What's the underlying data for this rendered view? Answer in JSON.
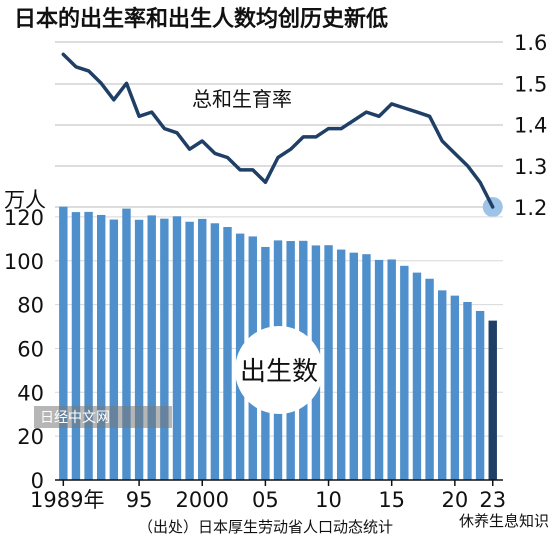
{
  "title": "日本的出生率和出生人数均创历史新低",
  "source": "（出处）日本厚生劳动省人口动态统计",
  "watermarks": {
    "left": "日经中文网",
    "right": "休养生息知识"
  },
  "colors": {
    "bar": "#4f8fcb",
    "bar_last": "#1f3f66",
    "line": "#1f3f66",
    "dot": "#9dc3e8"
  },
  "chart_data": [
    {
      "type": "line",
      "label": "总和生育率",
      "x": [
        1989,
        1990,
        1991,
        1992,
        1993,
        1994,
        1995,
        1996,
        1997,
        1998,
        1999,
        2000,
        2001,
        2002,
        2003,
        2004,
        2005,
        2006,
        2007,
        2008,
        2009,
        2010,
        2011,
        2012,
        2013,
        2014,
        2015,
        2016,
        2017,
        2018,
        2019,
        2020,
        2021,
        2022,
        2023
      ],
      "values": [
        1.57,
        1.54,
        1.53,
        1.5,
        1.46,
        1.5,
        1.42,
        1.43,
        1.39,
        1.38,
        1.34,
        1.36,
        1.33,
        1.32,
        1.29,
        1.29,
        1.26,
        1.32,
        1.34,
        1.37,
        1.37,
        1.39,
        1.39,
        1.41,
        1.43,
        1.42,
        1.45,
        1.44,
        1.43,
        1.42,
        1.36,
        1.33,
        1.3,
        1.26,
        1.2
      ],
      "ylim": [
        1.2,
        1.6
      ],
      "yticks": [
        "1.6",
        "1.5",
        "1.4",
        "1.3",
        "1.2"
      ],
      "yaxis_position": "right",
      "highlight_last": true
    },
    {
      "type": "bar",
      "label": "出生数",
      "unit": "万人",
      "x": [
        1989,
        1990,
        1991,
        1992,
        1993,
        1994,
        1995,
        1996,
        1997,
        1998,
        1999,
        2000,
        2001,
        2002,
        2003,
        2004,
        2005,
        2006,
        2007,
        2008,
        2009,
        2010,
        2011,
        2012,
        2013,
        2014,
        2015,
        2016,
        2017,
        2018,
        2019,
        2020,
        2021,
        2022,
        2023
      ],
      "values": [
        124.7,
        122.2,
        122.3,
        120.9,
        118.8,
        123.8,
        118.7,
        120.7,
        119.2,
        120.3,
        117.8,
        119.1,
        117.1,
        115.4,
        112.4,
        111.1,
        106.3,
        109.3,
        109.0,
        109.1,
        107.0,
        107.1,
        105.1,
        103.7,
        103.0,
        100.4,
        100.6,
        97.7,
        94.6,
        91.8,
        86.5,
        84.1,
        81.2,
        77.1,
        72.7
      ],
      "ylim": [
        0,
        130
      ],
      "yticks": [
        "0",
        "20",
        "40",
        "60",
        "80",
        "100",
        "120"
      ],
      "xticks": [
        {
          "year": 1989,
          "label": "1989年"
        },
        {
          "year": 1995,
          "label": "95"
        },
        {
          "year": 2000,
          "label": "2000"
        },
        {
          "year": 2005,
          "label": "05"
        },
        {
          "year": 2010,
          "label": "10"
        },
        {
          "year": 2015,
          "label": "15"
        },
        {
          "year": 2020,
          "label": "20"
        },
        {
          "year": 2023,
          "label": "23"
        }
      ],
      "highlight_last": true
    }
  ]
}
